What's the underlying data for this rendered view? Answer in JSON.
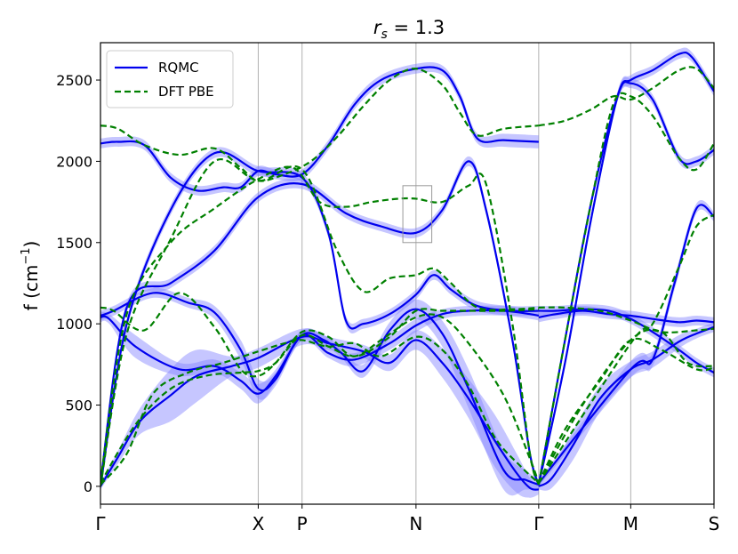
{
  "chart_data": {
    "type": "line",
    "title": "r_s = 1.3",
    "title_main": "r",
    "title_sub": "s",
    "title_rest": " = 1.3",
    "ylabel": "f (cm",
    "ylabel_sup": "−1",
    "ylabel_close": ")",
    "ylim": [
      -110,
      2730
    ],
    "yticks": [
      0,
      500,
      1000,
      1500,
      2000,
      2500
    ],
    "xlim": [
      0,
      7.0
    ],
    "high_symmetry_points": [
      {
        "label": "Γ",
        "x": 0.0
      },
      {
        "label": "X",
        "x": 1.8
      },
      {
        "label": "P",
        "x": 2.3
      },
      {
        "label": "N",
        "x": 3.6
      },
      {
        "label": "Γ",
        "x": 5.0
      },
      {
        "label": "M",
        "x": 6.05
      },
      {
        "label": "S",
        "x": 7.0
      }
    ],
    "legend": {
      "position": "top-left",
      "entries": [
        "RQMC",
        "DFT PBE"
      ]
    },
    "inset_box": {
      "x0": 3.45,
      "x1": 3.78,
      "y0": 1500,
      "y1": 1850
    },
    "colors": {
      "rqmc": "#0000ee",
      "rqmc_band": "#8080ff",
      "dft": "#008000",
      "grid": "#b0b0b0"
    },
    "series": [
      {
        "name": "RQMC",
        "style": "solid",
        "branches": [
          {
            "x": [
              0,
              0.15,
              0.6,
              1.0,
              1.3,
              1.6,
              1.8,
              2.0,
              2.3,
              2.6,
              2.9,
              3.3,
              3.6,
              3.9,
              4.2,
              4.6,
              4.9,
              5.0
            ],
            "y": [
              1050,
              1080,
              1190,
              1130,
              1070,
              840,
              600,
              660,
              930,
              820,
              780,
              880,
              990,
              1060,
              1080,
              1080,
              1060,
              1050
            ],
            "err": [
              30,
              30,
              30,
              30,
              40,
              60,
              60,
              40,
              30,
              30,
              40,
              40,
              40,
              30,
              30,
              30,
              30,
              30
            ]
          },
          {
            "x": [
              0,
              0.1,
              0.4,
              0.9,
              1.3,
              1.6,
              1.8,
              2.0,
              2.3,
              2.55,
              2.75,
              3.0,
              3.3,
              3.6,
              3.9,
              4.2,
              4.6,
              4.85,
              5.0
            ],
            "y": [
              1040,
              1030,
              860,
              720,
              740,
              650,
              570,
              680,
              930,
              900,
              820,
              710,
              960,
              1090,
              940,
              600,
              100,
              40,
              10
            ],
            "err": [
              30,
              30,
              70,
              40,
              40,
              50,
              60,
              40,
              30,
              30,
              30,
              40,
              50,
              60,
              80,
              120,
              120,
              60,
              30
            ]
          },
          {
            "x": [
              0,
              0.2,
              0.45,
              0.8,
              1.1,
              1.5,
              1.8,
              2.3,
              2.6,
              3.0,
              3.3,
              3.6,
              3.9,
              4.2,
              4.5,
              4.75,
              4.9,
              5.0
            ],
            "y": [
              0,
              180,
              400,
              560,
              680,
              740,
              790,
              920,
              880,
              830,
              760,
              900,
              760,
              540,
              280,
              80,
              -10,
              -20
            ],
            "err": [
              20,
              40,
              80,
              160,
              160,
              60,
              60,
              50,
              40,
              40,
              50,
              60,
              90,
              120,
              160,
              120,
              60,
              30
            ]
          },
          {
            "x": [
              0,
              0.3,
              0.8,
              1.3,
              1.8,
              2.3,
              2.6,
              2.8,
              3.0,
              3.3,
              3.6,
              3.8,
              4.0,
              4.3,
              4.7,
              5.0
            ],
            "y": [
              0,
              1000,
              1700,
              2050,
              1940,
              1900,
              1560,
              1020,
              1000,
              1060,
              1180,
              1300,
              1210,
              1110,
              1080,
              1080
            ],
            "err": [
              20,
              30,
              30,
              30,
              30,
              30,
              30,
              30,
              30,
              30,
              30,
              30,
              30,
              30,
              30,
              30
            ]
          },
          {
            "x": [
              0,
              0.3,
              0.8,
              1.3,
              1.8,
              2.3,
              2.8,
              3.2,
              3.6,
              3.9,
              4.2,
              4.4,
              4.7,
              4.9,
              5.0
            ],
            "y": [
              20,
              1100,
              1250,
              1450,
              1780,
              1860,
              1680,
              1600,
              1560,
              1700,
              2000,
              1700,
              900,
              200,
              10
            ],
            "err": [
              20,
              30,
              30,
              30,
              30,
              30,
              30,
              30,
              30,
              30,
              30,
              30,
              30,
              30,
              20
            ]
          },
          {
            "x": [
              0,
              0.2,
              0.5,
              0.8,
              1.1,
              1.4,
              1.6,
              1.8,
              2.0,
              2.3,
              2.6,
              2.9,
              3.2,
              3.6,
              3.9,
              4.1,
              4.3,
              4.6,
              5.0
            ],
            "y": [
              2110,
              2120,
              2100,
              1900,
              1820,
              1840,
              1840,
              1940,
              1920,
              1920,
              2100,
              2350,
              2500,
              2570,
              2560,
              2400,
              2140,
              2130,
              2120
            ],
            "err": [
              30,
              30,
              30,
              30,
              30,
              30,
              30,
              30,
              30,
              30,
              30,
              30,
              30,
              30,
              30,
              30,
              30,
              40,
              40
            ]
          },
          {
            "x": [
              5.0,
              5.2,
              5.5,
              5.8,
              6.05,
              6.3,
              6.6,
              6.8,
              7.0
            ],
            "y": [
              1040,
              1060,
              1080,
              1060,
              1050,
              1030,
              1010,
              1020,
              1010
            ],
            "err": [
              30,
              30,
              30,
              30,
              30,
              30,
              30,
              30,
              30
            ]
          },
          {
            "x": [
              5.0,
              5.2,
              5.5,
              5.8,
              6.05,
              6.3,
              6.6,
              6.8,
              7.0
            ],
            "y": [
              1080,
              1080,
              1090,
              1080,
              1030,
              950,
              840,
              760,
              700
            ],
            "err": [
              30,
              30,
              30,
              30,
              30,
              30,
              30,
              30,
              30
            ]
          },
          {
            "x": [
              5.0,
              5.15,
              5.4,
              5.7,
              6.05,
              6.3,
              6.6,
              6.8,
              7.0
            ],
            "y": [
              0,
              50,
              260,
              540,
              720,
              780,
              890,
              940,
              980
            ],
            "err": [
              20,
              60,
              90,
              80,
              50,
              50,
              40,
              30,
              30
            ]
          },
          {
            "x": [
              5.0,
              5.3,
              5.6,
              5.9,
              6.05,
              6.3,
              6.6,
              6.8,
              7.0
            ],
            "y": [
              10,
              900,
              1750,
              2400,
              2480,
              2380,
              2020,
              2000,
              2070
            ],
            "err": [
              20,
              30,
              30,
              30,
              30,
              30,
              30,
              30,
              30
            ]
          },
          {
            "x": [
              5.0,
              5.3,
              5.6,
              5.9,
              6.05,
              6.3,
              6.6,
              6.75,
              7.0
            ],
            "y": [
              10,
              760,
              1650,
              2400,
              2500,
              2560,
              2660,
              2640,
              2430
            ],
            "err": [
              20,
              30,
              30,
              30,
              30,
              30,
              30,
              30,
              30
            ]
          },
          {
            "x": [
              5.0,
              6.05,
              6.3,
              6.55,
              6.8,
              7.0
            ],
            "y": [
              20,
              720,
              780,
              1250,
              1710,
              1660
            ],
            "err": [
              20,
              50,
              40,
              40,
              30,
              30
            ]
          }
        ]
      },
      {
        "name": "DFT PBE",
        "style": "dashed",
        "branches": [
          {
            "x": [
              0,
              0.15,
              0.5,
              0.9,
              1.3,
              1.6,
              1.8,
              2.0,
              2.3,
              2.6,
              2.9,
              3.3,
              3.6,
              3.9,
              4.2,
              4.6,
              5.0
            ],
            "y": [
              1100,
              1080,
              960,
              1190,
              980,
              720,
              680,
              760,
              950,
              920,
              800,
              920,
              1080,
              1080,
              1080,
              1080,
              1090
            ]
          },
          {
            "x": [
              0,
              0.4,
              0.8,
              1.2,
              1.6,
              1.8,
              2.0,
              2.3,
              2.6,
              2.9,
              3.2,
              3.6,
              3.9,
              4.2,
              4.6,
              4.9,
              5.0
            ],
            "y": [
              20,
              380,
              600,
              680,
              700,
              710,
              760,
              930,
              860,
              800,
              900,
              1040,
              1040,
              880,
              560,
              170,
              20
            ]
          },
          {
            "x": [
              0,
              0.3,
              0.6,
              1.0,
              1.4,
              1.8,
              2.1,
              2.3,
              2.6,
              2.9,
              3.2,
              3.6,
              3.9,
              4.2,
              4.5,
              4.8,
              5.0
            ],
            "y": [
              10,
              200,
              570,
              700,
              760,
              830,
              880,
              900,
              860,
              880,
              800,
              920,
              840,
              620,
              300,
              120,
              20
            ]
          },
          {
            "x": [
              0,
              0.3,
              0.8,
              1.3,
              1.8,
              2.3,
              2.7,
              3.0,
              3.3,
              3.6,
              3.8,
              4.0,
              4.3,
              4.7,
              5.0
            ],
            "y": [
              0,
              940,
              1520,
              2000,
              1880,
              1950,
              1450,
              1200,
              1280,
              1300,
              1340,
              1250,
              1100,
              1090,
              1100
            ]
          },
          {
            "x": [
              0,
              0.3,
              0.8,
              1.3,
              1.8,
              2.2,
              2.5,
              2.8,
              3.1,
              3.4,
              3.6,
              3.9,
              4.2,
              4.4,
              4.7,
              4.9,
              5.0
            ],
            "y": [
              30,
              1060,
              1500,
              1710,
              1890,
              1960,
              1750,
              1720,
              1750,
              1770,
              1770,
              1750,
              1850,
              1860,
              1000,
              200,
              10
            ]
          },
          {
            "x": [
              0,
              0.2,
              0.5,
              0.9,
              1.3,
              1.6,
              1.8,
              2.1,
              2.4,
              2.7,
              3.0,
              3.3,
              3.6,
              3.9,
              4.1,
              4.3,
              4.6,
              5.0
            ],
            "y": [
              2220,
              2200,
              2100,
              2040,
              2080,
              1960,
              1880,
              1920,
              2000,
              2150,
              2340,
              2500,
              2570,
              2470,
              2300,
              2160,
              2200,
              2220
            ]
          },
          {
            "x": [
              5.0,
              5.3,
              5.7,
              6.05,
              6.4,
              6.8,
              7.0
            ],
            "y": [
              20,
              350,
              650,
              900,
              840,
              720,
              730
            ]
          },
          {
            "x": [
              5.0,
              5.3,
              5.7,
              6.05,
              6.4,
              6.8,
              7.0
            ],
            "y": [
              1100,
              1100,
              1080,
              1020,
              950,
              960,
              970
            ]
          },
          {
            "x": [
              5.0,
              5.3,
              5.6,
              5.85,
              6.05,
              6.3,
              6.6,
              6.8,
              7.0
            ],
            "y": [
              10,
              900,
              1750,
              2350,
              2400,
              2280,
              2020,
              1950,
              2110
            ]
          },
          {
            "x": [
              5.0,
              5.3,
              5.6,
              5.85,
              6.05,
              6.3,
              6.6,
              6.8,
              7.0
            ],
            "y": [
              2220,
              2250,
              2320,
              2400,
              2380,
              2450,
              2560,
              2570,
              2450
            ]
          },
          {
            "x": [
              5.0,
              6.05,
              6.3,
              6.6,
              6.8,
              7.0
            ],
            "y": [
              20,
              880,
              1000,
              1350,
              1600,
              1670
            ]
          },
          {
            "x": [
              5.0,
              5.5,
              6.05,
              6.4,
              6.7,
              7.0
            ],
            "y": [
              20,
              500,
              900,
              950,
              760,
              740
            ]
          }
        ]
      }
    ]
  }
}
